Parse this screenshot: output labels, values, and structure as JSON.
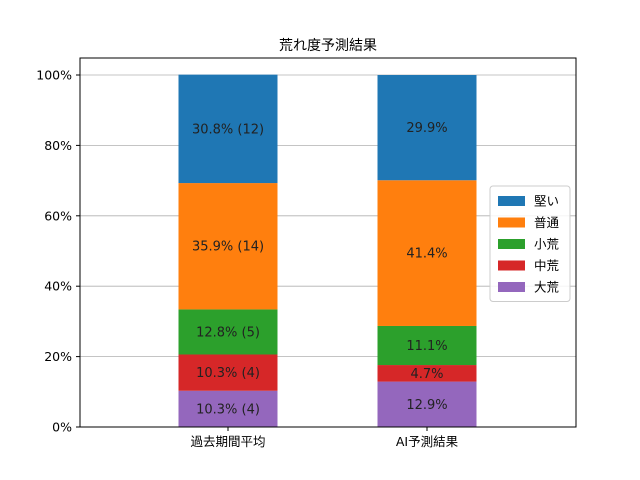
{
  "chart_data": {
    "type": "bar",
    "stacked": true,
    "title": "荒れ度予測結果",
    "xlabel": "",
    "ylabel": "",
    "categories": [
      "過去期間平均",
      "AI予測結果"
    ],
    "ylim": [
      0,
      100
    ],
    "yticks": [
      0,
      20,
      40,
      60,
      80,
      100
    ],
    "ytick_labels": [
      "0%",
      "20%",
      "40%",
      "60%",
      "80%",
      "100%"
    ],
    "grid": "horizontal",
    "legend_position": "center-right",
    "series": [
      {
        "name": "大荒",
        "color": "#9467bd",
        "values": [
          10.3,
          12.9
        ],
        "labels": [
          "10.3% (4)",
          "12.9%"
        ]
      },
      {
        "name": "中荒",
        "color": "#d62728",
        "values": [
          10.3,
          4.7
        ],
        "labels": [
          "10.3% (4)",
          "4.7%"
        ]
      },
      {
        "name": "小荒",
        "color": "#2ca02c",
        "values": [
          12.8,
          11.1
        ],
        "labels": [
          "12.8% (5)",
          "11.1%"
        ]
      },
      {
        "name": "普通",
        "color": "#ff7f0e",
        "values": [
          35.9,
          41.4
        ],
        "labels": [
          "35.9% (14)",
          "41.4%"
        ]
      },
      {
        "name": "堅い",
        "color": "#1f77b4",
        "values": [
          30.8,
          29.9
        ],
        "labels": [
          "30.8% (12)",
          "29.9%"
        ]
      }
    ],
    "legend_order": [
      "堅い",
      "普通",
      "小荒",
      "中荒",
      "大荒"
    ]
  }
}
